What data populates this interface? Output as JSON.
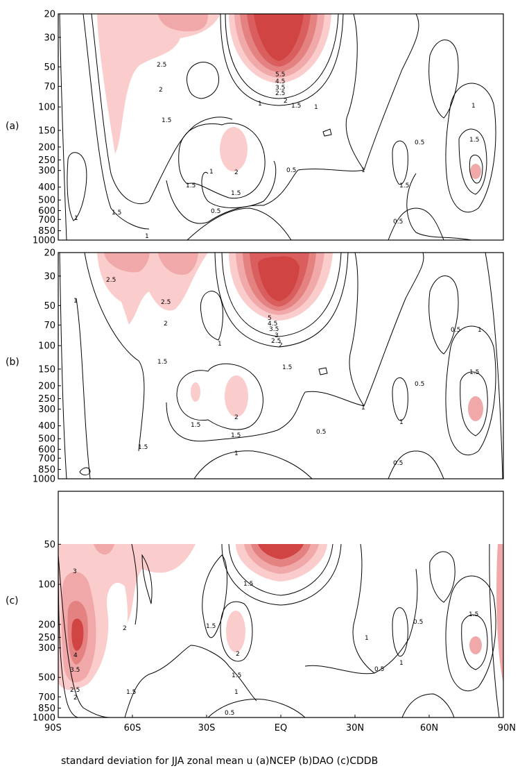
{
  "caption": "standard deviation for JJA zonal mean u (a)NCEP (b)DAO (c)CDDB",
  "colors": {
    "band_1": "#fbcccc",
    "band_2": "#f0a8a8",
    "band_3": "#e48282",
    "band_4": "#da5e5e",
    "band_5": "#d04444",
    "contour": "#000000",
    "frame": "#000000"
  },
  "chart_data": [
    {
      "type": "contour",
      "panel_label": "(a)",
      "x_ticks": [],
      "x_range": [
        "90S",
        "90N"
      ],
      "y_ticks": [
        "20",
        "30",
        "50",
        "70",
        "100",
        "150",
        "200",
        "250",
        "300",
        "400",
        "500",
        "600",
        "700",
        "850",
        "1000"
      ],
      "y_range_hPa": [
        20,
        1000
      ],
      "y_scale": "log",
      "shading_threshold": 2,
      "contour_labels": [
        "2.5",
        "2",
        "1.5",
        "1",
        "5.5",
        "4.5",
        "3.5",
        "2.5",
        "2",
        "1.5",
        "1",
        "0.5",
        "1.5",
        "2",
        "1.5",
        "1",
        "1.5",
        "0.5",
        "1",
        "1",
        "0.5",
        "0.5",
        "1",
        "1.5",
        "1.5",
        "1"
      ],
      "maxima": [
        {
          "lat": "0",
          "p_hPa": 25,
          "value": 5.5
        },
        {
          "lat": "60S",
          "p_hPa": 20,
          "value": 2.5
        },
        {
          "lat": "20S",
          "p_hPa": 210,
          "value": 2
        },
        {
          "lat": "75N",
          "p_hPa": 300,
          "value": 2
        }
      ]
    },
    {
      "type": "contour",
      "panel_label": "(b)",
      "x_ticks": [],
      "x_range": [
        "90S",
        "90N"
      ],
      "y_ticks": [
        "20",
        "30",
        "50",
        "70",
        "100",
        "150",
        "200",
        "250",
        "300",
        "400",
        "500",
        "600",
        "700",
        "850",
        "1000"
      ],
      "y_range_hPa": [
        20,
        1000
      ],
      "y_scale": "log",
      "shading_threshold": 2,
      "contour_labels": [
        "2.5",
        "2.5",
        "2",
        "1",
        "1.5",
        "5",
        "4.5",
        "3.5",
        "3",
        "2.5",
        "2",
        "1.5",
        "1.5",
        "2",
        "1.5",
        "1",
        "1",
        "0.5",
        "1",
        "0.5",
        "1.5",
        "1",
        "0.5",
        "1.5",
        "0.5",
        "1"
      ],
      "maxima": [
        {
          "lat": "0",
          "p_hPa": 35,
          "value": 5
        },
        {
          "lat": "60S",
          "p_hPa": 25,
          "value": 2.5
        },
        {
          "lat": "20S",
          "p_hPa": 230,
          "value": 2
        },
        {
          "lat": "75N",
          "p_hPa": 300,
          "value": 2
        }
      ]
    },
    {
      "type": "contour",
      "panel_label": "(c)",
      "x_ticks": [
        "90S",
        "60S",
        "30S",
        "EQ",
        "30N",
        "60N",
        "90N"
      ],
      "x_range": [
        "90S",
        "90N"
      ],
      "y_ticks": [
        "50",
        "100",
        "200",
        "250",
        "300",
        "500",
        "700",
        "850",
        "1000"
      ],
      "y_range_hPa": [
        20,
        1000
      ],
      "y_scale": "log",
      "data_range_hPa": [
        50,
        1000
      ],
      "shading_threshold": 2,
      "contour_labels": [
        "3",
        "4",
        "3.5",
        "2.5",
        "2",
        "2",
        "1.5",
        "1.5",
        "2",
        "1.5",
        "1",
        "0.5",
        "1.5",
        "1",
        "0.5",
        "1",
        "0.5",
        "1.5"
      ],
      "maxima": [
        {
          "lat": "80S",
          "p_hPa": 250,
          "value": 4
        },
        {
          "lat": "0",
          "p_hPa": 50,
          "value": 4
        },
        {
          "lat": "20S",
          "p_hPa": 260,
          "value": 2
        },
        {
          "lat": "75N",
          "p_hPa": 300,
          "value": 2
        },
        {
          "lat": "90N",
          "p_hPa": 300,
          "value": 2
        }
      ]
    }
  ]
}
